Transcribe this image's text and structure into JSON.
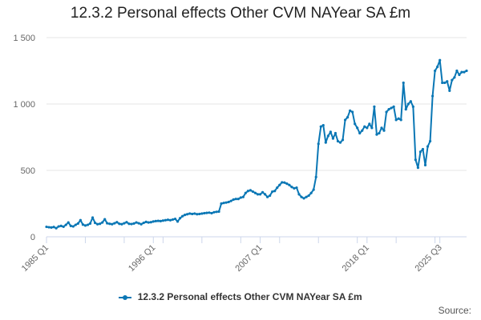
{
  "title": "12.3.2 Personal effects Other CVM NAYear SA £m",
  "source_label": "Source:",
  "colors": {
    "series": "#0a77b5",
    "grid": "#e6e6e6",
    "axis": "#ccd6eb",
    "tick_text": "#666666"
  },
  "chart_data": {
    "type": "line",
    "title": "12.3.2 Personal effects Other CVM NAYear SA £m",
    "xlabel": "",
    "ylabel": "",
    "ylim": [
      0,
      1500
    ],
    "y_ticks": [
      0,
      500,
      1000,
      1500
    ],
    "y_tick_labels": [
      "0",
      "500",
      "1 000",
      "1 500"
    ],
    "x_tick_labels": [
      "1985 Q1",
      "1996 Q1",
      "2007 Q1",
      "2018 Q1",
      "2025 Q3"
    ],
    "x_tick_index": [
      0,
      44,
      88,
      132,
      162
    ],
    "grid": "horizontal",
    "legend_position": "bottom",
    "series": [
      {
        "name": "12.3.2 Personal effects Other CVM NAYear SA £m",
        "values": [
          75,
          72,
          70,
          74,
          65,
          78,
          82,
          76,
          90,
          108,
          82,
          78,
          90,
          100,
          125,
          92,
          85,
          90,
          100,
          145,
          105,
          95,
          98,
          108,
          132,
          102,
          98,
          95,
          102,
          110,
          98,
          95,
          102,
          110,
          98,
          96,
          100,
          108,
          102,
          95,
          105,
          112,
          108,
          110,
          115,
          118,
          120,
          118,
          122,
          125,
          128,
          125,
          130,
          135,
          115,
          140,
          155,
          165,
          170,
          175,
          172,
          175,
          170,
          172,
          175,
          178,
          180,
          182,
          178,
          185,
          188,
          190,
          250,
          255,
          258,
          262,
          270,
          280,
          285,
          285,
          295,
          300,
          330,
          345,
          350,
          340,
          330,
          320,
          320,
          335,
          320,
          300,
          310,
          340,
          345,
          370,
          390,
          410,
          408,
          400,
          390,
          375,
          365,
          370,
          320,
          300,
          290,
          300,
          310,
          330,
          355,
          450,
          700,
          830,
          840,
          710,
          760,
          790,
          740,
          780,
          720,
          710,
          730,
          880,
          900,
          950,
          940,
          850,
          820,
          780,
          800,
          830,
          820,
          850,
          820,
          980,
          770,
          780,
          820,
          800,
          940,
          960,
          970,
          980,
          880,
          890,
          880,
          1160,
          960,
          1000,
          1020,
          980,
          580,
          520,
          640,
          660,
          540,
          680,
          720,
          1060,
          1250,
          1280,
          1330,
          1160,
          1160,
          1170,
          1100,
          1180,
          1200,
          1250,
          1220,
          1240,
          1240,
          1250
        ]
      }
    ]
  }
}
